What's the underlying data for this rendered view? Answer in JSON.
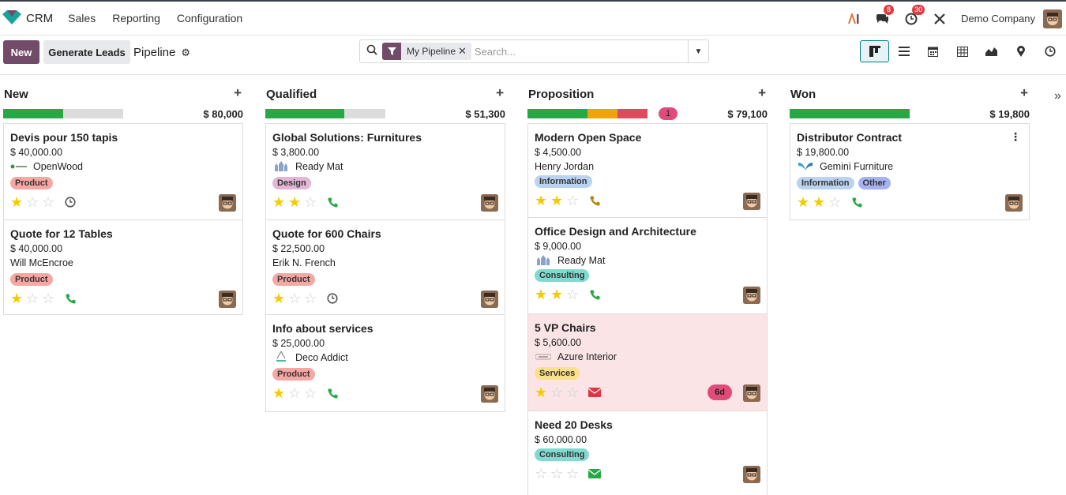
{
  "app": {
    "name": "CRM",
    "menu": [
      "Sales",
      "Reporting",
      "Configuration"
    ],
    "company": "Demo Company",
    "messages_count": "8",
    "activities_count": "30"
  },
  "controls": {
    "new_label": "New",
    "generate_label": "Generate Leads",
    "breadcrumb": "Pipeline",
    "facet_label": "My Pipeline",
    "search_placeholder": "Search...",
    "views": [
      "kanban-icon",
      "list-icon",
      "calendar-icon",
      "pivot-icon",
      "graph-icon",
      "map-icon",
      "activity-icon"
    ]
  },
  "colors": {
    "brand": "#714b67",
    "success": "#28a745",
    "warning": "#f0a30a",
    "danger": "#dc4c5c",
    "star": "#f3cc00",
    "phone": "#28a745",
    "clock": "#555555",
    "mail_green": "#28a745",
    "mail_red": "#dc3545",
    "pill": "#e04b7a"
  },
  "columns": [
    {
      "title": "New",
      "total": "$ 80,000",
      "progress": {
        "green": 0.5,
        "orange": 0,
        "red": 0
      },
      "count_pill": "",
      "cards": [
        {
          "title": "Devis pour 150 tapis",
          "amount": "$ 40,000.00",
          "partner": "OpenWood",
          "partner_logo": "openwood-logo",
          "tags": [
            {
              "label": "Product",
              "color": "#f7a7a3"
            }
          ],
          "stars": 1,
          "activity": "clock-icon",
          "late": ""
        },
        {
          "title": "Quote for 12 Tables",
          "amount": "$ 40,000.00",
          "partner": "Will McEncroe",
          "partner_logo": "",
          "tags": [
            {
              "label": "Product",
              "color": "#f7a7a3"
            }
          ],
          "stars": 1,
          "activity": "phone-icon",
          "late": ""
        }
      ]
    },
    {
      "title": "Qualified",
      "total": "$ 51,300",
      "progress": {
        "green": 0.66,
        "orange": 0,
        "red": 0
      },
      "count_pill": "",
      "cards": [
        {
          "title": "Global Solutions: Furnitures",
          "amount": "$ 3,800.00",
          "partner": "Ready Mat",
          "partner_logo": "readymat-logo",
          "tags": [
            {
              "label": "Design",
              "color": "#e3b6d8"
            }
          ],
          "stars": 2,
          "activity": "phone-icon",
          "late": ""
        },
        {
          "title": "Quote for 600 Chairs",
          "amount": "$ 22,500.00",
          "partner": "Erik N. French",
          "partner_logo": "",
          "tags": [
            {
              "label": "Product",
              "color": "#f7a7a3"
            }
          ],
          "stars": 1,
          "activity": "clock-icon",
          "late": ""
        },
        {
          "title": "Info about services",
          "amount": "$ 25,000.00",
          "partner": "Deco Addict",
          "partner_logo": "decoaddict-logo",
          "tags": [
            {
              "label": "Product",
              "color": "#f7a7a3"
            }
          ],
          "stars": 1,
          "activity": "phone-icon",
          "late": ""
        }
      ]
    },
    {
      "title": "Proposition",
      "total": "$ 79,100",
      "progress": {
        "green": 0.5,
        "orange": 0.25,
        "red": 0.25
      },
      "count_pill": "1",
      "cards": [
        {
          "title": "Modern Open Space",
          "amount": "$ 4,500.00",
          "partner": "Henry Jordan",
          "partner_logo": "",
          "tags": [
            {
              "label": "Information",
              "color": "#b9d3f0"
            }
          ],
          "stars": 2,
          "activity": "phone-orange-icon",
          "late": ""
        },
        {
          "title": "Office Design and Architecture",
          "amount": "$ 9,000.00",
          "partner": "Ready Mat",
          "partner_logo": "readymat-logo",
          "tags": [
            {
              "label": "Consulting",
              "color": "#7fdbd0"
            }
          ],
          "stars": 2,
          "activity": "phone-icon",
          "late": ""
        },
        {
          "title": "5 VP Chairs",
          "amount": "$ 5,600.00",
          "partner": "Azure Interior",
          "partner_logo": "azure-logo",
          "tags": [
            {
              "label": "Services",
              "color": "#fbe08a"
            }
          ],
          "stars": 1,
          "activity": "mail-red-icon",
          "late": "6d"
        },
        {
          "title": "Need 20 Desks",
          "amount": "$ 60,000.00",
          "partner": "",
          "partner_logo": "",
          "tags": [
            {
              "label": "Consulting",
              "color": "#7fdbd0"
            }
          ],
          "stars": 0,
          "activity": "mail-green-icon",
          "late": ""
        }
      ]
    },
    {
      "title": "Won",
      "total": "$ 19,800",
      "progress": {
        "green": 1,
        "orange": 0,
        "red": 0
      },
      "count_pill": "",
      "cards": [
        {
          "title": "Distributor Contract",
          "amount": "$ 19,800.00",
          "partner": "Gemini Furniture",
          "partner_logo": "gemini-logo",
          "tags": [
            {
              "label": "Information",
              "color": "#b9d3f0"
            },
            {
              "label": "Other",
              "color": "#a6b2f2"
            }
          ],
          "stars": 2,
          "activity": "phone-icon",
          "late": ""
        }
      ]
    }
  ]
}
